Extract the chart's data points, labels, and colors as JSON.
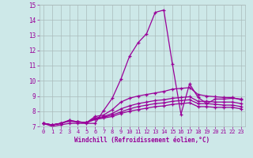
{
  "xlabel": "Windchill (Refroidissement éolien,°C)",
  "bg_color": "#cde8e8",
  "line_color": "#990099",
  "grid_color": "#aaaacc",
  "xlim": [
    -0.5,
    23.5
  ],
  "ylim": [
    7,
    15
  ],
  "yticks": [
    7,
    8,
    9,
    10,
    11,
    12,
    13,
    14,
    15
  ],
  "xticks": [
    0,
    1,
    2,
    3,
    4,
    5,
    6,
    7,
    8,
    9,
    10,
    11,
    12,
    13,
    14,
    15,
    16,
    17,
    18,
    19,
    20,
    21,
    22,
    23
  ],
  "lines": [
    [
      7.2,
      7.0,
      7.1,
      7.2,
      7.2,
      7.2,
      7.2,
      8.05,
      8.85,
      10.1,
      11.6,
      12.5,
      13.1,
      14.5,
      14.65,
      11.1,
      7.8,
      9.8,
      8.9,
      8.5,
      8.8,
      8.8,
      8.85,
      8.8
    ],
    [
      7.2,
      7.1,
      7.2,
      7.4,
      7.3,
      7.25,
      7.65,
      7.75,
      8.1,
      8.6,
      8.85,
      9.0,
      9.1,
      9.2,
      9.3,
      9.45,
      9.5,
      9.55,
      9.1,
      9.0,
      8.95,
      8.9,
      8.9,
      8.75
    ],
    [
      7.2,
      7.1,
      7.2,
      7.4,
      7.3,
      7.25,
      7.55,
      7.65,
      7.85,
      8.15,
      8.35,
      8.5,
      8.6,
      8.7,
      8.75,
      8.85,
      8.9,
      8.95,
      8.65,
      8.65,
      8.6,
      8.6,
      8.6,
      8.5
    ],
    [
      7.2,
      7.1,
      7.2,
      7.35,
      7.3,
      7.25,
      7.5,
      7.6,
      7.75,
      7.95,
      8.15,
      8.3,
      8.4,
      8.5,
      8.55,
      8.65,
      8.7,
      8.75,
      8.5,
      8.5,
      8.45,
      8.4,
      8.4,
      8.3
    ],
    [
      7.2,
      7.1,
      7.2,
      7.35,
      7.3,
      7.25,
      7.45,
      7.55,
      7.65,
      7.85,
      8.0,
      8.1,
      8.2,
      8.3,
      8.35,
      8.45,
      8.5,
      8.55,
      8.3,
      8.3,
      8.25,
      8.25,
      8.25,
      8.15
    ]
  ],
  "marker": "+",
  "markersize": 3.5,
  "linewidth": 0.9
}
